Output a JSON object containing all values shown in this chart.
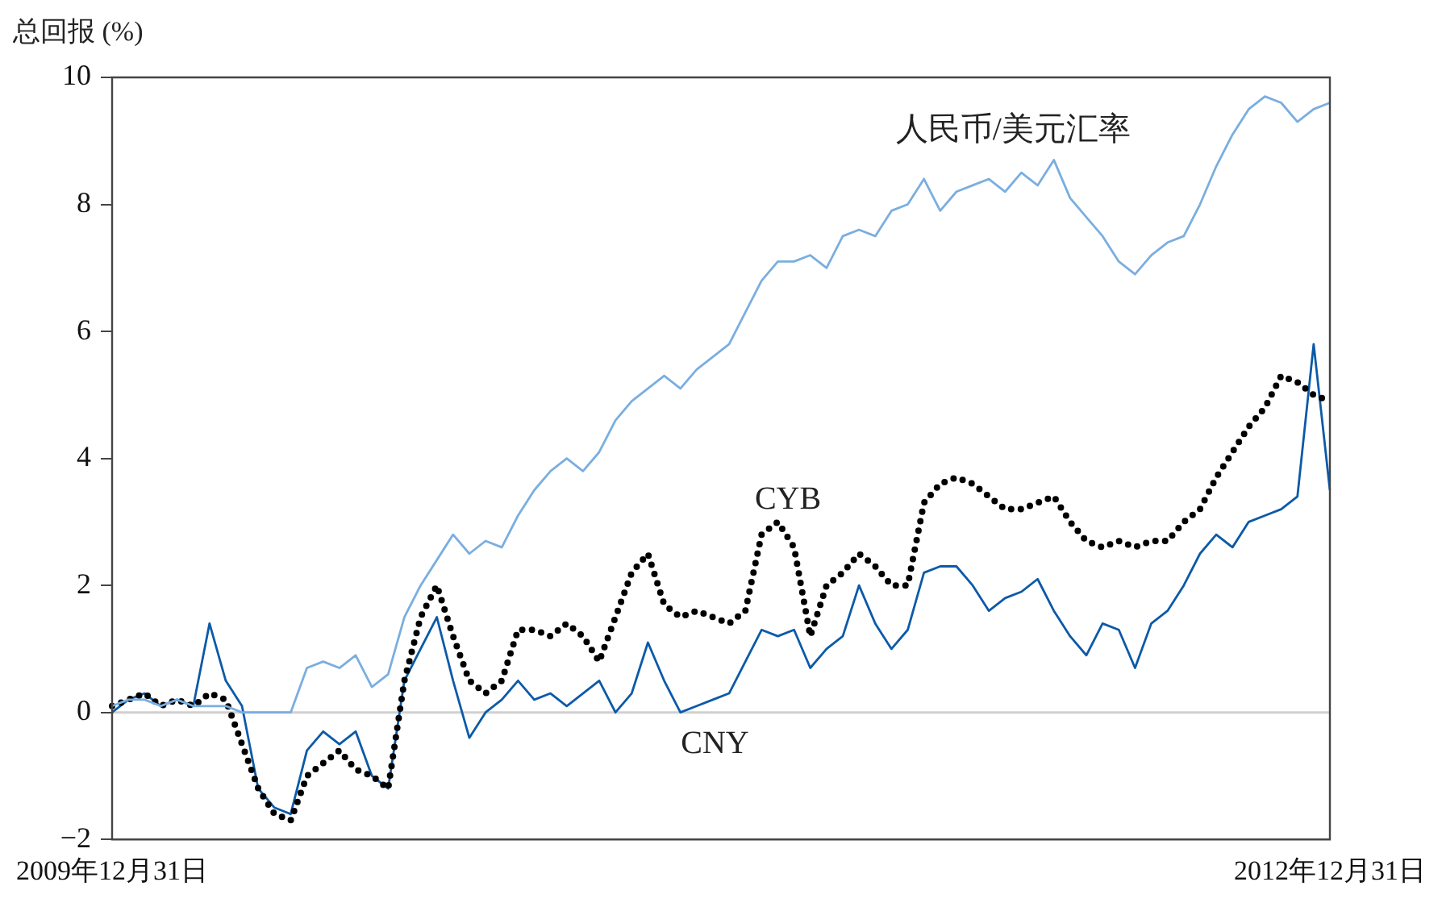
{
  "chart_data": {
    "type": "line",
    "ylabel": "总回报 (%)",
    "categories": [
      "2009年12月31日",
      null,
      null,
      null,
      null,
      null,
      null,
      null,
      null,
      null,
      null,
      null,
      null,
      null,
      null,
      null,
      null,
      null,
      null,
      null,
      null,
      null,
      null,
      null,
      null,
      null,
      null,
      null,
      null,
      null,
      null,
      null,
      null,
      null,
      null,
      null,
      null,
      null,
      null,
      null,
      null,
      null,
      null,
      null,
      null,
      null,
      null,
      null,
      null,
      null,
      null,
      null,
      null,
      null,
      null,
      null,
      null,
      null,
      null,
      null,
      null,
      null,
      null,
      null,
      null,
      null,
      null,
      null,
      null,
      null,
      null,
      null,
      null,
      null,
      null,
      "2012年12月31日"
    ],
    "series": [
      {
        "name": "人民币/美元汇率",
        "color": "#7aaee0",
        "line_style": "solid",
        "values": [
          0.1,
          0.2,
          0.2,
          0.1,
          0.2,
          0.1,
          0.1,
          0.1,
          0,
          0,
          0,
          0,
          0.7,
          0.8,
          0.7,
          0.9,
          0.4,
          0.6,
          1.5,
          2.0,
          2.4,
          2.8,
          2.5,
          2.7,
          2.6,
          3.1,
          3.5,
          3.8,
          4.0,
          3.8,
          4.1,
          4.6,
          4.9,
          5.1,
          5.3,
          5.1,
          5.4,
          5.6,
          5.8,
          6.3,
          6.8,
          7.1,
          7.1,
          7.2,
          7.0,
          7.5,
          7.6,
          7.5,
          7.9,
          8.0,
          8.4,
          7.9,
          8.2,
          8.3,
          8.4,
          8.2,
          8.5,
          8.3,
          8.7,
          8.1,
          7.8,
          7.5,
          7.1,
          6.9,
          7.2,
          7.4,
          7.5,
          8.0,
          8.6,
          9.1,
          9.5,
          9.7,
          9.6,
          9.3,
          9.5,
          9.6
        ]
      },
      {
        "name": "CYB",
        "color": "#000000",
        "line_style": "dotted",
        "values": [
          0.1,
          0.2,
          0.3,
          0.1,
          0.2,
          0.1,
          0.3,
          0.2,
          -0.5,
          -1.2,
          -1.6,
          -1.7,
          -1.0,
          -0.8,
          -0.6,
          -0.9,
          -1.0,
          -1.2,
          0.5,
          1.5,
          2.0,
          1.2,
          0.5,
          0.3,
          0.5,
          1.3,
          1.3,
          1.2,
          1.4,
          1.2,
          0.8,
          1.5,
          2.2,
          2.5,
          1.7,
          1.5,
          1.6,
          1.5,
          1.4,
          1.6,
          2.8,
          3.0,
          2.6,
          1.2,
          2.0,
          2.2,
          2.5,
          2.3,
          2.0,
          2.0,
          3.3,
          3.6,
          3.7,
          3.6,
          3.4,
          3.2,
          3.2,
          3.3,
          3.4,
          3.0,
          2.7,
          2.6,
          2.7,
          2.6,
          2.7,
          2.7,
          3.0,
          3.2,
          3.7,
          4.1,
          4.5,
          4.8,
          5.3,
          5.2,
          5.0,
          4.9
        ]
      },
      {
        "name": "CNY",
        "color": "#0b5aa8",
        "line_style": "solid",
        "values": [
          0,
          0.2,
          0.3,
          0.1,
          0.2,
          0.1,
          1.4,
          0.5,
          0.1,
          -1.2,
          -1.5,
          -1.6,
          -0.6,
          -0.3,
          -0.5,
          -0.3,
          -1.0,
          -1.2,
          0.5,
          1.0,
          1.5,
          0.5,
          -0.4,
          0,
          0.2,
          0.5,
          0.2,
          0.3,
          0.1,
          0.3,
          0.5,
          0,
          0.3,
          1.1,
          0.5,
          0,
          0.1,
          0.2,
          0.3,
          0.8,
          1.3,
          1.2,
          1.3,
          0.7,
          1.0,
          1.2,
          2.0,
          1.4,
          1.0,
          1.3,
          2.2,
          2.3,
          2.3,
          2.0,
          1.6,
          1.8,
          1.9,
          2.1,
          1.6,
          1.2,
          0.9,
          1.4,
          1.3,
          0.7,
          1.4,
          1.6,
          2.0,
          2.5,
          2.8,
          2.6,
          3.0,
          3.1,
          3.2,
          3.4,
          5.8,
          3.5
        ]
      }
    ],
    "ylim": [
      -2,
      10
    ],
    "yticks": [
      {
        "value": -2,
        "label": "−2"
      },
      0,
      2,
      4,
      6,
      8,
      10
    ],
    "ref_lines": [
      {
        "axis": "y",
        "value": 0,
        "color": "#d0d0d0"
      }
    ],
    "grid": false,
    "legend": false,
    "marker": "none"
  }
}
